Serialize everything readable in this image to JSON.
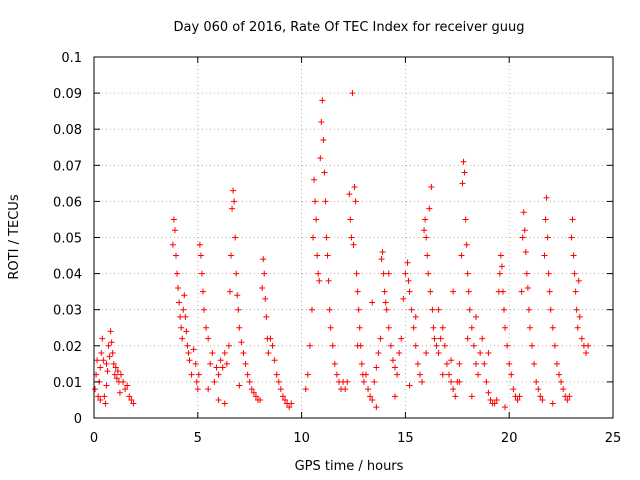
{
  "chart_data": {
    "type": "scatter",
    "title": "Day 060 of 2016, Rate Of TEC Index for receiver guug",
    "xlabel": "GPS time / hours",
    "ylabel": "ROTI / TECUs",
    "xlim": [
      0,
      25
    ],
    "ylim": [
      0,
      0.1
    ],
    "xticks": [
      "0",
      "5",
      "10",
      "15",
      "20",
      "25"
    ],
    "yticks": [
      "0",
      "0.01",
      "0.02",
      "0.03",
      "0.04",
      "0.05",
      "0.06",
      "0.07",
      "0.08",
      "0.09",
      "0.1"
    ],
    "grid": true,
    "marker": "+",
    "color": "#ff0000",
    "series": [
      {
        "points": [
          [
            0.05,
            0.008
          ],
          [
            0.1,
            0.012
          ],
          [
            0.15,
            0.016
          ],
          [
            0.2,
            0.006
          ],
          [
            0.25,
            0.01
          ],
          [
            0.3,
            0.014
          ],
          [
            0.35,
            0.018
          ],
          [
            0.4,
            0.022
          ],
          [
            0.45,
            0.016
          ],
          [
            0.5,
            0.006
          ],
          [
            0.55,
            0.004
          ],
          [
            0.6,
            0.009
          ],
          [
            0.65,
            0.013
          ],
          [
            0.7,
            0.02
          ],
          [
            0.75,
            0.017
          ],
          [
            0.8,
            0.024
          ],
          [
            0.85,
            0.021
          ],
          [
            0.9,
            0.018
          ],
          [
            0.95,
            0.015
          ],
          [
            1.0,
            0.012
          ],
          [
            1.05,
            0.014
          ],
          [
            1.1,
            0.011
          ],
          [
            1.15,
            0.013
          ],
          [
            1.2,
            0.01
          ],
          [
            1.3,
            0.012
          ],
          [
            1.4,
            0.01
          ],
          [
            1.5,
            0.008
          ],
          [
            1.6,
            0.009
          ],
          [
            1.7,
            0.006
          ],
          [
            1.8,
            0.005
          ],
          [
            1.9,
            0.004
          ],
          [
            0.3,
            0.005
          ],
          [
            0.6,
            0.015
          ],
          [
            1.25,
            0.007
          ],
          [
            3.8,
            0.048
          ],
          [
            3.85,
            0.055
          ],
          [
            3.9,
            0.052
          ],
          [
            3.95,
            0.045
          ],
          [
            4.0,
            0.04
          ],
          [
            4.05,
            0.036
          ],
          [
            4.1,
            0.032
          ],
          [
            4.15,
            0.028
          ],
          [
            4.2,
            0.025
          ],
          [
            4.25,
            0.022
          ],
          [
            4.3,
            0.03
          ],
          [
            4.35,
            0.034
          ],
          [
            4.4,
            0.028
          ],
          [
            4.45,
            0.024
          ],
          [
            4.5,
            0.02
          ],
          [
            4.55,
            0.018
          ],
          [
            4.6,
            0.016
          ],
          [
            4.7,
            0.012
          ],
          [
            4.8,
            0.019
          ],
          [
            4.9,
            0.015
          ],
          [
            4.95,
            0.01
          ],
          [
            5.0,
            0.008
          ],
          [
            5.05,
            0.012
          ],
          [
            5.1,
            0.048
          ],
          [
            5.15,
            0.045
          ],
          [
            5.2,
            0.04
          ],
          [
            5.25,
            0.035
          ],
          [
            5.3,
            0.03
          ],
          [
            5.4,
            0.025
          ],
          [
            5.5,
            0.022
          ],
          [
            5.6,
            0.015
          ],
          [
            5.7,
            0.018
          ],
          [
            5.8,
            0.01
          ],
          [
            5.9,
            0.014
          ],
          [
            6.0,
            0.012
          ],
          [
            6.1,
            0.016
          ],
          [
            6.2,
            0.014
          ],
          [
            6.3,
            0.018
          ],
          [
            6.4,
            0.015
          ],
          [
            6.5,
            0.02
          ],
          [
            6.55,
            0.035
          ],
          [
            6.6,
            0.045
          ],
          [
            6.65,
            0.058
          ],
          [
            6.7,
            0.063
          ],
          [
            6.75,
            0.06
          ],
          [
            6.8,
            0.05
          ],
          [
            6.85,
            0.04
          ],
          [
            6.9,
            0.034
          ],
          [
            6.95,
            0.03
          ],
          [
            7.0,
            0.025
          ],
          [
            7.1,
            0.021
          ],
          [
            7.2,
            0.018
          ],
          [
            7.3,
            0.015
          ],
          [
            7.4,
            0.012
          ],
          [
            7.5,
            0.01
          ],
          [
            7.6,
            0.008
          ],
          [
            7.7,
            0.007
          ],
          [
            7.8,
            0.006
          ],
          [
            7.9,
            0.005
          ],
          [
            8.0,
            0.005
          ],
          [
            8.1,
            0.036
          ],
          [
            8.15,
            0.044
          ],
          [
            8.2,
            0.04
          ],
          [
            8.25,
            0.033
          ],
          [
            8.3,
            0.028
          ],
          [
            8.35,
            0.022
          ],
          [
            8.4,
            0.018
          ],
          [
            8.5,
            0.022
          ],
          [
            8.6,
            0.02
          ],
          [
            8.7,
            0.016
          ],
          [
            8.8,
            0.012
          ],
          [
            8.9,
            0.01
          ],
          [
            9.0,
            0.008
          ],
          [
            9.1,
            0.006
          ],
          [
            9.2,
            0.005
          ],
          [
            9.3,
            0.004
          ],
          [
            9.4,
            0.003
          ],
          [
            9.5,
            0.004
          ],
          [
            6.3,
            0.004
          ],
          [
            6.0,
            0.005
          ],
          [
            7.0,
            0.009
          ],
          [
            5.5,
            0.008
          ],
          [
            10.2,
            0.008
          ],
          [
            10.3,
            0.012
          ],
          [
            10.4,
            0.02
          ],
          [
            10.5,
            0.03
          ],
          [
            10.55,
            0.05
          ],
          [
            10.6,
            0.066
          ],
          [
            10.65,
            0.06
          ],
          [
            10.7,
            0.055
          ],
          [
            10.75,
            0.045
          ],
          [
            10.8,
            0.04
          ],
          [
            10.85,
            0.038
          ],
          [
            10.9,
            0.072
          ],
          [
            10.95,
            0.082
          ],
          [
            11.0,
            0.088
          ],
          [
            11.05,
            0.077
          ],
          [
            11.1,
            0.068
          ],
          [
            11.15,
            0.06
          ],
          [
            11.2,
            0.05
          ],
          [
            11.25,
            0.045
          ],
          [
            11.3,
            0.038
          ],
          [
            11.35,
            0.03
          ],
          [
            11.4,
            0.025
          ],
          [
            11.5,
            0.02
          ],
          [
            11.6,
            0.015
          ],
          [
            11.7,
            0.012
          ],
          [
            11.8,
            0.01
          ],
          [
            11.9,
            0.008
          ],
          [
            12.0,
            0.01
          ],
          [
            12.1,
            0.008
          ],
          [
            12.2,
            0.01
          ],
          [
            12.3,
            0.062
          ],
          [
            12.35,
            0.055
          ],
          [
            12.4,
            0.05
          ],
          [
            12.45,
            0.09
          ],
          [
            12.5,
            0.048
          ],
          [
            12.55,
            0.064
          ],
          [
            12.6,
            0.06
          ],
          [
            12.65,
            0.04
          ],
          [
            12.7,
            0.035
          ],
          [
            12.75,
            0.03
          ],
          [
            12.8,
            0.025
          ],
          [
            12.85,
            0.02
          ],
          [
            12.9,
            0.015
          ],
          [
            12.95,
            0.012
          ],
          [
            13.0,
            0.01
          ],
          [
            13.1,
            0.012
          ],
          [
            13.2,
            0.008
          ],
          [
            13.3,
            0.006
          ],
          [
            13.4,
            0.005
          ],
          [
            13.5,
            0.01
          ],
          [
            13.6,
            0.014
          ],
          [
            13.7,
            0.018
          ],
          [
            13.8,
            0.022
          ],
          [
            13.85,
            0.044
          ],
          [
            13.9,
            0.046
          ],
          [
            13.95,
            0.04
          ],
          [
            14.0,
            0.035
          ],
          [
            14.05,
            0.032
          ],
          [
            14.1,
            0.03
          ],
          [
            14.2,
            0.025
          ],
          [
            14.3,
            0.02
          ],
          [
            14.4,
            0.016
          ],
          [
            14.5,
            0.014
          ],
          [
            14.6,
            0.012
          ],
          [
            14.7,
            0.018
          ],
          [
            14.8,
            0.022
          ],
          [
            14.9,
            0.033
          ],
          [
            15.0,
            0.04
          ],
          [
            15.1,
            0.043
          ],
          [
            15.15,
            0.038
          ],
          [
            15.2,
            0.035
          ],
          [
            15.3,
            0.03
          ],
          [
            15.4,
            0.025
          ],
          [
            15.5,
            0.02
          ],
          [
            15.6,
            0.015
          ],
          [
            15.7,
            0.012
          ],
          [
            15.8,
            0.01
          ],
          [
            15.9,
            0.052
          ],
          [
            15.95,
            0.055
          ],
          [
            16.0,
            0.05
          ],
          [
            16.05,
            0.045
          ],
          [
            16.1,
            0.04
          ],
          [
            16.15,
            0.058
          ],
          [
            16.2,
            0.035
          ],
          [
            16.25,
            0.064
          ],
          [
            16.3,
            0.03
          ],
          [
            16.35,
            0.025
          ],
          [
            16.4,
            0.022
          ],
          [
            16.5,
            0.02
          ],
          [
            16.6,
            0.018
          ],
          [
            16.7,
            0.022
          ],
          [
            16.8,
            0.025
          ],
          [
            16.9,
            0.02
          ],
          [
            17.0,
            0.015
          ],
          [
            17.1,
            0.012
          ],
          [
            17.2,
            0.01
          ],
          [
            17.3,
            0.008
          ],
          [
            17.4,
            0.006
          ],
          [
            17.5,
            0.01
          ],
          [
            17.6,
            0.015
          ],
          [
            17.7,
            0.045
          ],
          [
            17.75,
            0.065
          ],
          [
            17.8,
            0.071
          ],
          [
            17.85,
            0.068
          ],
          [
            17.9,
            0.055
          ],
          [
            17.95,
            0.048
          ],
          [
            18.0,
            0.04
          ],
          [
            18.05,
            0.035
          ],
          [
            18.1,
            0.03
          ],
          [
            18.2,
            0.025
          ],
          [
            18.3,
            0.02
          ],
          [
            18.4,
            0.015
          ],
          [
            18.5,
            0.012
          ],
          [
            18.6,
            0.018
          ],
          [
            18.7,
            0.022
          ],
          [
            18.8,
            0.015
          ],
          [
            18.9,
            0.01
          ],
          [
            19.0,
            0.007
          ],
          [
            19.1,
            0.005
          ],
          [
            19.2,
            0.004
          ],
          [
            19.3,
            0.004
          ],
          [
            19.4,
            0.005
          ],
          [
            19.5,
            0.035
          ],
          [
            19.55,
            0.04
          ],
          [
            19.6,
            0.045
          ],
          [
            19.65,
            0.042
          ],
          [
            19.7,
            0.035
          ],
          [
            19.75,
            0.03
          ],
          [
            19.8,
            0.025
          ],
          [
            19.9,
            0.02
          ],
          [
            20.0,
            0.015
          ],
          [
            20.1,
            0.012
          ],
          [
            20.2,
            0.008
          ],
          [
            20.3,
            0.006
          ],
          [
            20.4,
            0.005
          ],
          [
            20.5,
            0.006
          ],
          [
            20.6,
            0.035
          ],
          [
            20.65,
            0.05
          ],
          [
            20.7,
            0.057
          ],
          [
            20.75,
            0.052
          ],
          [
            20.8,
            0.046
          ],
          [
            20.85,
            0.04
          ],
          [
            20.9,
            0.036
          ],
          [
            20.95,
            0.03
          ],
          [
            21.0,
            0.025
          ],
          [
            21.1,
            0.02
          ],
          [
            21.2,
            0.015
          ],
          [
            21.3,
            0.01
          ],
          [
            21.4,
            0.008
          ],
          [
            21.5,
            0.006
          ],
          [
            21.6,
            0.005
          ],
          [
            21.7,
            0.045
          ],
          [
            21.75,
            0.055
          ],
          [
            21.8,
            0.061
          ],
          [
            21.85,
            0.05
          ],
          [
            21.9,
            0.04
          ],
          [
            21.95,
            0.035
          ],
          [
            22.0,
            0.03
          ],
          [
            22.1,
            0.025
          ],
          [
            22.2,
            0.02
          ],
          [
            22.3,
            0.015
          ],
          [
            22.4,
            0.012
          ],
          [
            22.5,
            0.01
          ],
          [
            22.6,
            0.008
          ],
          [
            22.7,
            0.006
          ],
          [
            22.8,
            0.005
          ],
          [
            22.9,
            0.006
          ],
          [
            23.0,
            0.05
          ],
          [
            23.05,
            0.055
          ],
          [
            23.1,
            0.045
          ],
          [
            23.15,
            0.04
          ],
          [
            23.2,
            0.035
          ],
          [
            23.25,
            0.03
          ],
          [
            23.3,
            0.025
          ],
          [
            23.35,
            0.038
          ],
          [
            23.4,
            0.028
          ],
          [
            23.5,
            0.022
          ],
          [
            23.6,
            0.02
          ],
          [
            23.7,
            0.018
          ],
          [
            23.8,
            0.02
          ],
          [
            14.5,
            0.006
          ],
          [
            15.2,
            0.009
          ],
          [
            16.8,
            0.012
          ],
          [
            17.2,
            0.016
          ],
          [
            18.2,
            0.006
          ],
          [
            19.8,
            0.003
          ],
          [
            22.1,
            0.004
          ],
          [
            16.0,
            0.018
          ],
          [
            15.5,
            0.028
          ],
          [
            16.6,
            0.03
          ],
          [
            17.3,
            0.035
          ],
          [
            17.6,
            0.01
          ],
          [
            18.0,
            0.022
          ],
          [
            18.4,
            0.028
          ],
          [
            19.0,
            0.018
          ],
          [
            14.2,
            0.04
          ],
          [
            13.4,
            0.032
          ],
          [
            12.7,
            0.02
          ],
          [
            13.6,
            0.003
          ]
        ]
      }
    ]
  }
}
